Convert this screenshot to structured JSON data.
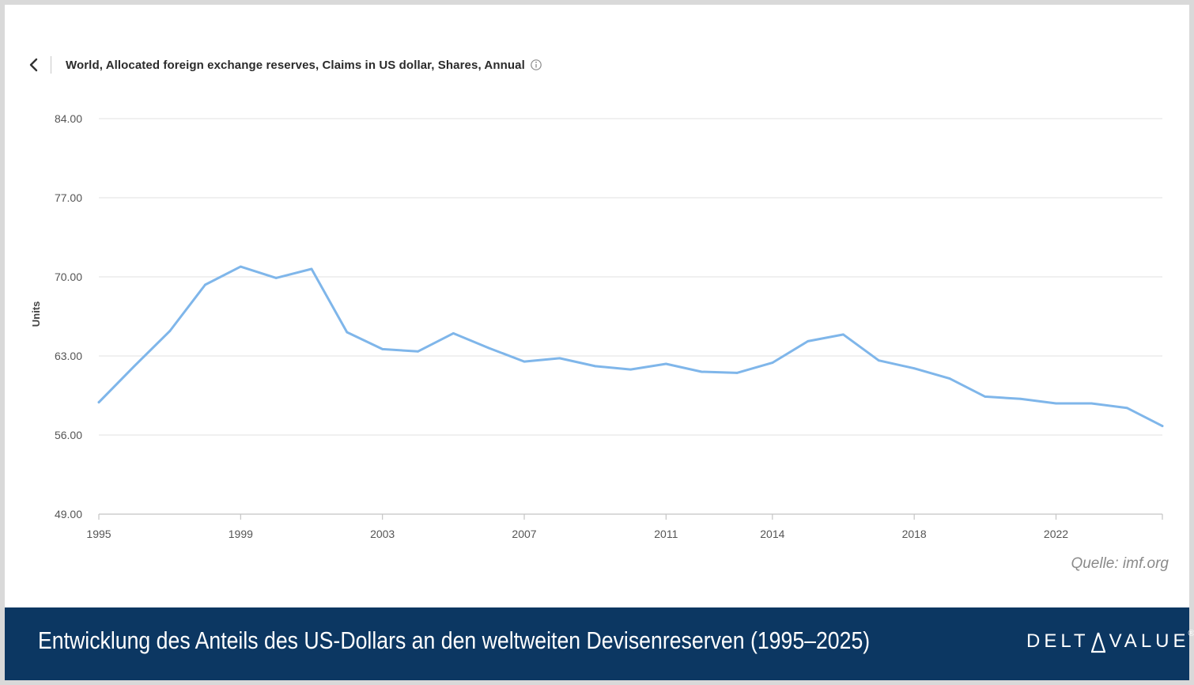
{
  "header": {
    "title": "World, Allocated foreign exchange reserves, Claims in US dollar, Shares, Annual"
  },
  "chart_data": {
    "type": "line",
    "title": "World, Allocated foreign exchange reserves, Claims in US dollar, Shares, Annual",
    "ylabel": "Units",
    "xlabel": "",
    "ylim": [
      49,
      84
    ],
    "yticks": [
      "49.00",
      "56.00",
      "63.00",
      "70.00",
      "77.00",
      "84.00"
    ],
    "xlim": [
      1995,
      2025
    ],
    "xticks": [
      "1995",
      "1999",
      "2003",
      "2007",
      "2011",
      "2014",
      "2018",
      "2022"
    ],
    "grid": true,
    "color": "#7fb6ea",
    "series": [
      {
        "x": [
          1995,
          1996,
          1997,
          1998,
          1999,
          2000,
          2001,
          2002,
          2003,
          2004,
          2005,
          2006,
          2007,
          2008,
          2009,
          2010,
          2011,
          2012,
          2013,
          2014,
          2015,
          2016,
          2017,
          2018,
          2019,
          2020,
          2021,
          2022,
          2023,
          2024,
          2025
        ],
        "values": [
          58.9,
          62.1,
          65.2,
          69.3,
          70.9,
          69.9,
          70.7,
          65.1,
          63.6,
          63.4,
          65.0,
          63.7,
          62.5,
          62.8,
          62.1,
          61.8,
          62.3,
          61.6,
          61.5,
          62.4,
          64.3,
          64.9,
          62.6,
          61.9,
          61.0,
          59.4,
          59.2,
          58.8,
          58.8,
          58.4,
          56.8
        ]
      }
    ]
  },
  "source": "Quelle: imf.org",
  "footer": {
    "caption": "Entwicklung des Anteils des US-Dollars an den weltweiten Devisenreserven (1995–2025)",
    "brand_prefix": "DELT",
    "brand_suffix": "VALUE",
    "brand_mark": "®"
  }
}
